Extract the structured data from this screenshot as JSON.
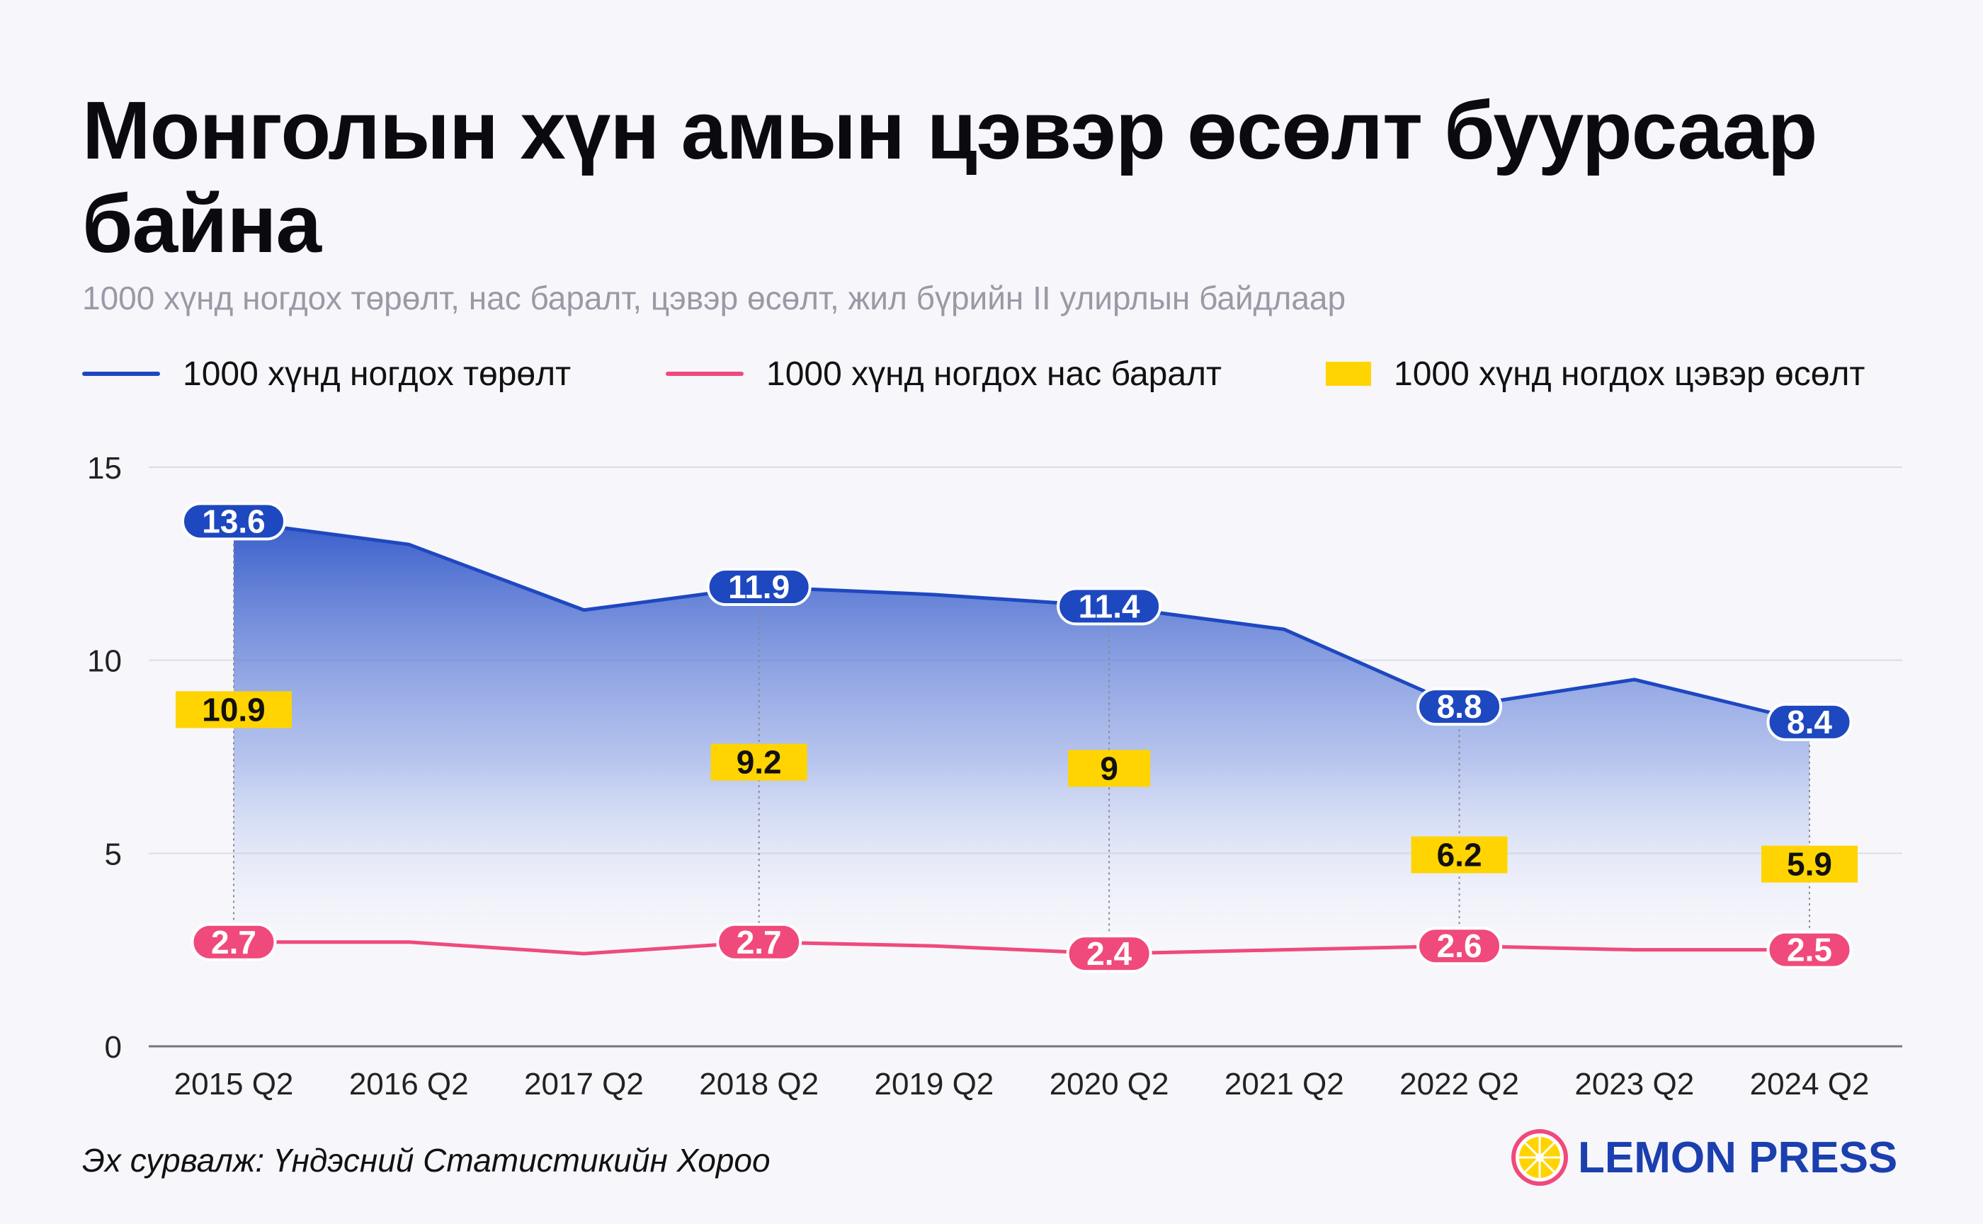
{
  "title": "Монголын хүн амын цэвэр өсөлт буурсаар байна",
  "subtitle": "1000 хүнд ногдох төрөлт, нас баралт, цэвэр өсөлт, жил бүрийн II улирлын байдлаар",
  "legend": [
    {
      "label": "1000 хүнд ногдох төрөлт",
      "color": "#1e48c0",
      "shape": "line"
    },
    {
      "label": "1000 хүнд ногдох нас баралт",
      "color": "#ef4a7b",
      "shape": "line"
    },
    {
      "label": "1000 хүнд ногдох цэвэр өсөлт",
      "color": "#ffd400",
      "shape": "box"
    }
  ],
  "source": "Эх сурвалж: Үндэсний Статистикийн Хороо",
  "brand": {
    "name": "LEMON PRESS",
    "icon": "lemon-slice-icon",
    "color": "#1b3fae",
    "accent": "#ffd400"
  },
  "chart_data": {
    "type": "line",
    "categories": [
      "2015 Q2",
      "2016 Q2",
      "2017 Q2",
      "2018 Q2",
      "2019 Q2",
      "2020 Q2",
      "2021 Q2",
      "2022 Q2",
      "2023 Q2",
      "2024 Q2"
    ],
    "ylim": [
      0,
      15
    ],
    "yticks": [
      0,
      5,
      10,
      15
    ],
    "grid": true,
    "series": [
      {
        "name": "1000 хүнд ногдох төрөлт",
        "type": "area-line",
        "color": "#1e48c0",
        "values": [
          13.6,
          13.0,
          11.3,
          11.9,
          11.7,
          11.4,
          10.8,
          8.8,
          9.5,
          8.4
        ],
        "labeled": {
          "0": "13.6",
          "3": "11.9",
          "5": "11.4",
          "7": "8.8",
          "9": "8.4"
        }
      },
      {
        "name": "1000 хүнд ногдох нас баралт",
        "type": "line",
        "color": "#ef4a7b",
        "values": [
          2.7,
          2.7,
          2.4,
          2.7,
          2.6,
          2.4,
          2.5,
          2.6,
          2.5,
          2.5
        ],
        "labeled": {
          "0": "2.7",
          "3": "2.7",
          "5": "2.4",
          "7": "2.6",
          "9": "2.5"
        }
      },
      {
        "name": "1000 хүнд ногдох цэвэр өсөлт",
        "type": "label",
        "color": "#ffd400",
        "values": {
          "0": 10.9,
          "3": 9.2,
          "5": 9,
          "7": 6.2,
          "9": 5.9
        },
        "labeled": {
          "0": "10.9",
          "3": "9.2",
          "5": "9",
          "7": "6.2",
          "9": "5.9"
        }
      }
    ]
  }
}
